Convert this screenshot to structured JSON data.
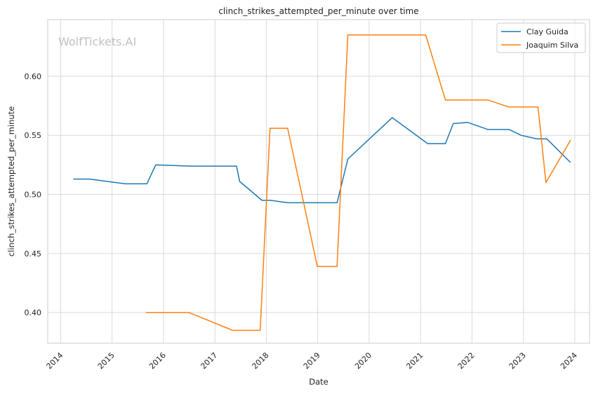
{
  "chart_data": {
    "type": "line",
    "title": "clinch_strikes_attempted_per_minute over time",
    "xlabel": "Date",
    "ylabel": "clinch_strikes_attempted_per_minute",
    "watermark": "WolfTickets.AI",
    "x_ticks": [
      "2014",
      "2015",
      "2016",
      "2017",
      "2018",
      "2019",
      "2020",
      "2021",
      "2022",
      "2023",
      "2024"
    ],
    "y_ticks": [
      "0.40",
      "0.45",
      "0.50",
      "0.55",
      "0.60"
    ],
    "xlim": [
      "2013-10-01",
      "2024-04-15"
    ],
    "ylim": [
      0.374,
      0.648
    ],
    "grid": true,
    "legend_position": "top-right",
    "series": [
      {
        "name": "Clay Guida",
        "color": "#1f77b4",
        "points": [
          {
            "x": "2014-04-01",
            "y": 0.513
          },
          {
            "x": "2014-07-26",
            "y": 0.513
          },
          {
            "x": "2015-04-04",
            "y": 0.509
          },
          {
            "x": "2015-09-05",
            "y": 0.509
          },
          {
            "x": "2015-11-07",
            "y": 0.525
          },
          {
            "x": "2016-07-07",
            "y": 0.524
          },
          {
            "x": "2017-06-03",
            "y": 0.524
          },
          {
            "x": "2017-06-25",
            "y": 0.511
          },
          {
            "x": "2017-12-01",
            "y": 0.495
          },
          {
            "x": "2018-02-01",
            "y": 0.495
          },
          {
            "x": "2018-06-01",
            "y": 0.493
          },
          {
            "x": "2019-05-18",
            "y": 0.493
          },
          {
            "x": "2019-08-03",
            "y": 0.53
          },
          {
            "x": "2020-06-13",
            "y": 0.565
          },
          {
            "x": "2021-02-20",
            "y": 0.543
          },
          {
            "x": "2021-06-26",
            "y": 0.543
          },
          {
            "x": "2021-08-21",
            "y": 0.56
          },
          {
            "x": "2021-12-01",
            "y": 0.561
          },
          {
            "x": "2022-04-23",
            "y": 0.555
          },
          {
            "x": "2022-09-20",
            "y": 0.555
          },
          {
            "x": "2022-12-17",
            "y": 0.55
          },
          {
            "x": "2023-04-08",
            "y": 0.547
          },
          {
            "x": "2023-06-17",
            "y": 0.547
          },
          {
            "x": "2023-12-02",
            "y": 0.527
          }
        ]
      },
      {
        "name": "Joaquim Silva",
        "color": "#ff7f0e",
        "points": [
          {
            "x": "2015-08-29",
            "y": 0.4
          },
          {
            "x": "2016-07-01",
            "y": 0.4
          },
          {
            "x": "2017-05-06",
            "y": 0.385
          },
          {
            "x": "2017-11-18",
            "y": 0.385
          },
          {
            "x": "2018-01-27",
            "y": 0.556
          },
          {
            "x": "2018-06-01",
            "y": 0.556
          },
          {
            "x": "2018-12-29",
            "y": 0.439
          },
          {
            "x": "2019-05-18",
            "y": 0.439
          },
          {
            "x": "2019-08-03",
            "y": 0.635
          },
          {
            "x": "2021-02-06",
            "y": 0.635
          },
          {
            "x": "2021-06-26",
            "y": 0.58
          },
          {
            "x": "2022-04-23",
            "y": 0.58
          },
          {
            "x": "2022-09-20",
            "y": 0.574
          },
          {
            "x": "2023-04-15",
            "y": 0.574
          },
          {
            "x": "2023-06-10",
            "y": 0.51
          },
          {
            "x": "2023-12-02",
            "y": 0.546
          }
        ]
      }
    ]
  }
}
